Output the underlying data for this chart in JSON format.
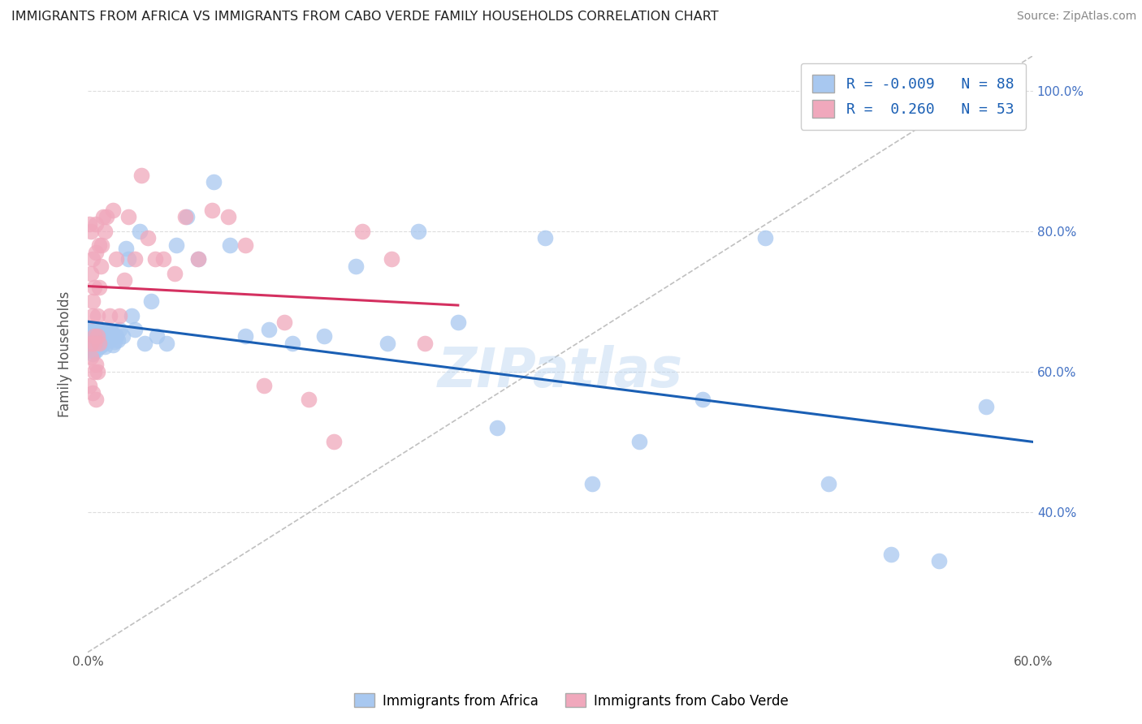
{
  "title": "IMMIGRANTS FROM AFRICA VS IMMIGRANTS FROM CABO VERDE FAMILY HOUSEHOLDS CORRELATION CHART",
  "source": "Source: ZipAtlas.com",
  "ylabel": "Family Households",
  "xlim": [
    0.0,
    0.6
  ],
  "ylim": [
    0.2,
    1.05
  ],
  "yticks": [
    0.4,
    0.6,
    0.8,
    1.0
  ],
  "ytick_labels": [
    "40.0%",
    "60.0%",
    "80.0%",
    "100.0%"
  ],
  "xtick_positions": [
    0.0,
    0.6
  ],
  "xtick_labels": [
    "0.0%",
    "60.0%"
  ],
  "legend_R_africa": "-0.009",
  "legend_N_africa": "88",
  "legend_R_caboverde": "0.260",
  "legend_N_caboverde": "53",
  "color_africa": "#a8c8f0",
  "color_caboverde": "#f0a8bc",
  "trendline_africa_color": "#1a5fb4",
  "trendline_caboverde_color": "#d43060",
  "watermark": "ZIPatlas",
  "background_color": "#ffffff",
  "grid_color": "#dddddd",
  "africa_x": [
    0.001,
    0.001,
    0.001,
    0.002,
    0.002,
    0.002,
    0.002,
    0.002,
    0.003,
    0.003,
    0.003,
    0.003,
    0.003,
    0.004,
    0.004,
    0.004,
    0.004,
    0.005,
    0.005,
    0.005,
    0.005,
    0.006,
    0.006,
    0.006,
    0.006,
    0.007,
    0.007,
    0.007,
    0.008,
    0.008,
    0.008,
    0.009,
    0.009,
    0.01,
    0.01,
    0.011,
    0.012,
    0.013,
    0.014,
    0.015,
    0.016,
    0.017,
    0.018,
    0.019,
    0.02,
    0.022,
    0.024,
    0.026,
    0.028,
    0.03,
    0.033,
    0.036,
    0.04,
    0.044,
    0.05,
    0.056,
    0.063,
    0.07,
    0.08,
    0.09,
    0.1,
    0.115,
    0.13,
    0.15,
    0.17,
    0.19,
    0.21,
    0.235,
    0.26,
    0.29,
    0.32,
    0.35,
    0.39,
    0.43,
    0.47,
    0.51,
    0.54,
    0.57,
    0.003,
    0.004,
    0.005,
    0.006,
    0.007,
    0.008,
    0.009,
    0.01,
    0.012,
    0.015
  ],
  "africa_y": [
    0.64,
    0.65,
    0.66,
    0.63,
    0.645,
    0.655,
    0.635,
    0.66,
    0.625,
    0.64,
    0.65,
    0.66,
    0.635,
    0.63,
    0.645,
    0.655,
    0.64,
    0.63,
    0.645,
    0.655,
    0.64,
    0.635,
    0.65,
    0.64,
    0.66,
    0.635,
    0.645,
    0.655,
    0.64,
    0.65,
    0.66,
    0.638,
    0.648,
    0.65,
    0.64,
    0.635,
    0.648,
    0.66,
    0.645,
    0.655,
    0.638,
    0.642,
    0.65,
    0.645,
    0.66,
    0.65,
    0.775,
    0.76,
    0.68,
    0.66,
    0.8,
    0.64,
    0.7,
    0.65,
    0.64,
    0.78,
    0.82,
    0.76,
    0.87,
    0.78,
    0.65,
    0.66,
    0.64,
    0.65,
    0.75,
    0.64,
    0.8,
    0.67,
    0.52,
    0.79,
    0.44,
    0.5,
    0.56,
    0.79,
    0.44,
    0.34,
    0.33,
    0.55,
    0.64,
    0.65,
    0.645,
    0.655,
    0.635,
    0.642,
    0.638,
    0.648,
    0.652,
    0.658
  ],
  "caboverde_x": [
    0.001,
    0.001,
    0.002,
    0.002,
    0.002,
    0.003,
    0.003,
    0.003,
    0.004,
    0.004,
    0.004,
    0.005,
    0.005,
    0.005,
    0.006,
    0.006,
    0.007,
    0.007,
    0.008,
    0.009,
    0.01,
    0.011,
    0.012,
    0.014,
    0.016,
    0.018,
    0.02,
    0.023,
    0.026,
    0.03,
    0.034,
    0.038,
    0.043,
    0.048,
    0.055,
    0.062,
    0.07,
    0.079,
    0.089,
    0.1,
    0.112,
    0.125,
    0.14,
    0.156,
    0.174,
    0.193,
    0.214,
    0.002,
    0.003,
    0.004,
    0.005,
    0.006,
    0.007
  ],
  "caboverde_y": [
    0.58,
    0.81,
    0.62,
    0.8,
    0.64,
    0.76,
    0.57,
    0.7,
    0.6,
    0.72,
    0.64,
    0.56,
    0.81,
    0.77,
    0.65,
    0.68,
    0.72,
    0.78,
    0.75,
    0.78,
    0.82,
    0.8,
    0.82,
    0.68,
    0.83,
    0.76,
    0.68,
    0.73,
    0.82,
    0.76,
    0.88,
    0.79,
    0.76,
    0.76,
    0.74,
    0.82,
    0.76,
    0.83,
    0.82,
    0.78,
    0.58,
    0.67,
    0.56,
    0.5,
    0.8,
    0.76,
    0.64,
    0.74,
    0.68,
    0.65,
    0.61,
    0.6,
    0.64
  ]
}
